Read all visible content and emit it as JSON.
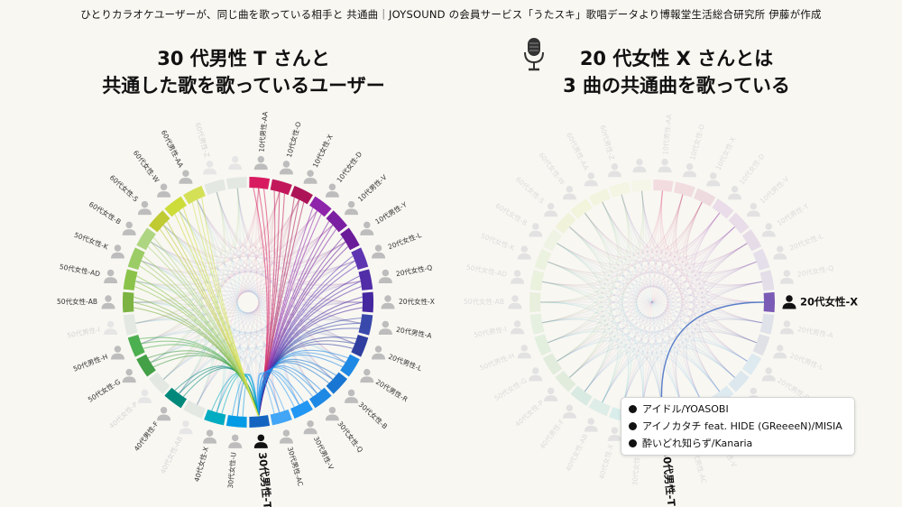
{
  "header": {
    "text": "ひとりカラオケユーザーが、同じ曲を歌っている相手と 共通曲｜JOYSOUND の会員サービス「うたスキ」歌唱データより博報堂生活総合研究所 伊藤が作成"
  },
  "left_chart": {
    "title_line1": "30 代男性 T さんと",
    "title_line2": "共通した歌を歌っているユーザー",
    "focus_user": "30代男性-T",
    "nodes": [
      {
        "label": "10代男性-AA",
        "color": "#d81b60",
        "active": true
      },
      {
        "label": "10代女性-O",
        "color": "#c2185b",
        "active": true
      },
      {
        "label": "10代女性-X",
        "color": "#ad1457",
        "active": true
      },
      {
        "label": "10代女性-D",
        "color": "#8e24aa",
        "active": true
      },
      {
        "label": "10代男性-V",
        "color": "#7b1fa2",
        "active": true
      },
      {
        "label": "10代男性-Y",
        "color": "#6a1b9a",
        "active": true
      },
      {
        "label": "20代女性-L",
        "color": "#5e35b1",
        "active": true
      },
      {
        "label": "20代女性-Q",
        "color": "#512da8",
        "active": true
      },
      {
        "label": "20代女性-X",
        "color": "#4527a0",
        "active": true
      },
      {
        "label": "20代男性-A",
        "color": "#3949ab",
        "active": true
      },
      {
        "label": "20代男性-L",
        "color": "#303f9f",
        "active": true
      },
      {
        "label": "20代男性-R",
        "color": "#1e88e5",
        "active": true
      },
      {
        "label": "30代女性-B",
        "color": "#1976d2",
        "active": true
      },
      {
        "label": "30代女性-Q",
        "color": "#1e88e5",
        "active": true
      },
      {
        "label": "30代男性-V",
        "color": "#2196f3",
        "active": true
      },
      {
        "label": "30代男性-AC",
        "color": "#42a5f5",
        "active": true
      },
      {
        "label": "30代男性-T",
        "color": "#1565c0",
        "active": true,
        "focus": true
      },
      {
        "label": "30代女性-U",
        "color": "#039be5",
        "active": true
      },
      {
        "label": "40代女性-X",
        "color": "#00acc1",
        "active": true
      },
      {
        "label": "40代女性-AB",
        "color": "#26a69a",
        "active": false
      },
      {
        "label": "40代男性-F",
        "color": "#00897b",
        "active": true
      },
      {
        "label": "40代女性-P",
        "color": "#43a047",
        "active": false
      },
      {
        "label": "50代女性-G",
        "color": "#43a047",
        "active": true
      },
      {
        "label": "50代男性-H",
        "color": "#4caf50",
        "active": true
      },
      {
        "label": "50代男性-I",
        "color": "#66bb6a",
        "active": false
      },
      {
        "label": "50代女性-AB",
        "color": "#7cb342",
        "active": true
      },
      {
        "label": "50代女性-AD",
        "color": "#8bc34a",
        "active": true
      },
      {
        "label": "50代女性-K",
        "color": "#9ccc65",
        "active": true
      },
      {
        "label": "60代女性-B",
        "color": "#aed581",
        "active": true
      },
      {
        "label": "60代女性-S",
        "color": "#c0ca33",
        "active": true
      },
      {
        "label": "60代女性-W",
        "color": "#cddc39",
        "active": true
      },
      {
        "label": "60代男性-AA",
        "color": "#d4e157",
        "active": true
      },
      {
        "label": "60代男性-Z",
        "color": "#dce775",
        "active": false
      },
      {
        "label": "",
        "color": "#e6ee9c",
        "active": false
      }
    ]
  },
  "right_chart": {
    "title_line1": "20 代女性 X さんとは",
    "title_line2": "3 曲の共通曲を歌っている",
    "mic_icon": "microphone-icon",
    "user_a": "30代男性-T",
    "user_b": "20代女性-X",
    "songs": [
      "アイドル/YOASOBI",
      "アイノカタチ feat. HIDE (GReeeeN)/MISIA",
      "酔いどれ知らず/Kanaria"
    ]
  }
}
